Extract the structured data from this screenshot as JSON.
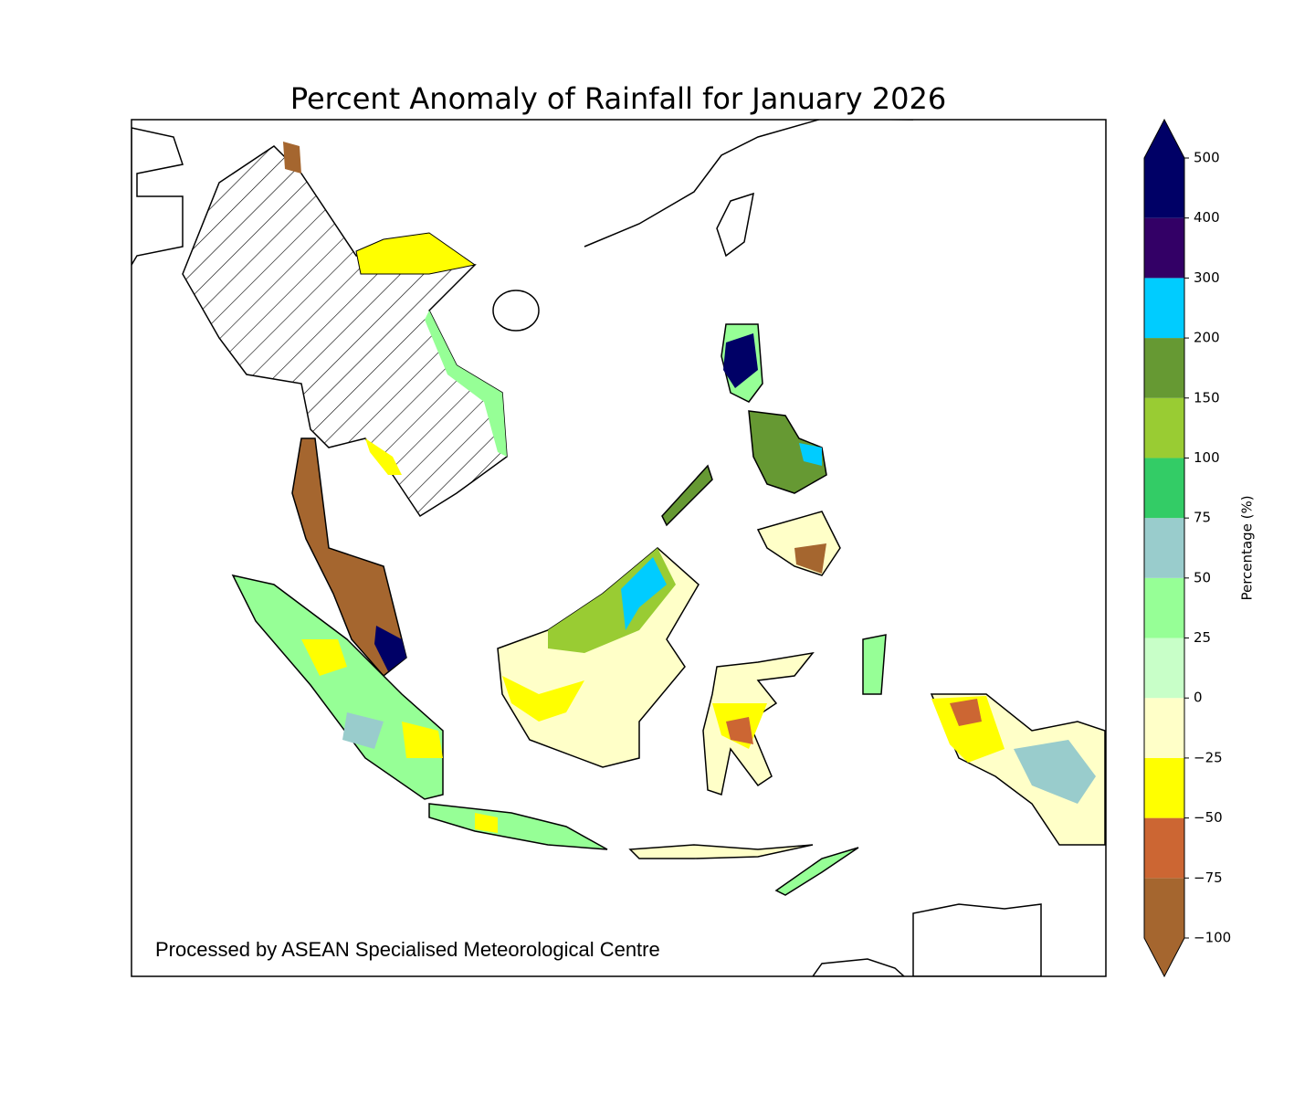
{
  "title": "Percent Anomaly of Rainfall for January 2026",
  "credit": "Processed by ASEAN Specialised Meteorological Centre",
  "colorbar": {
    "label": "Percentage (%)",
    "ticks": [
      {
        "value": -100,
        "label": "−100"
      },
      {
        "value": -75,
        "label": "−75"
      },
      {
        "value": -50,
        "label": "−50"
      },
      {
        "value": -25,
        "label": "−25"
      },
      0,
      25,
      50,
      75,
      100,
      150,
      200,
      300,
      400,
      500
    ],
    "colors": [
      "#a5662f",
      "#cc6633",
      "#ffff00",
      "#ffffc8",
      "#c8ffc8",
      "#96ff96",
      "#99cccc",
      "#33cc66",
      "#99cc33",
      "#669933",
      "#00ccff",
      "#330066",
      "#000066"
    ],
    "under_color": "#a5662f",
    "over_color": "#000066"
  }
}
